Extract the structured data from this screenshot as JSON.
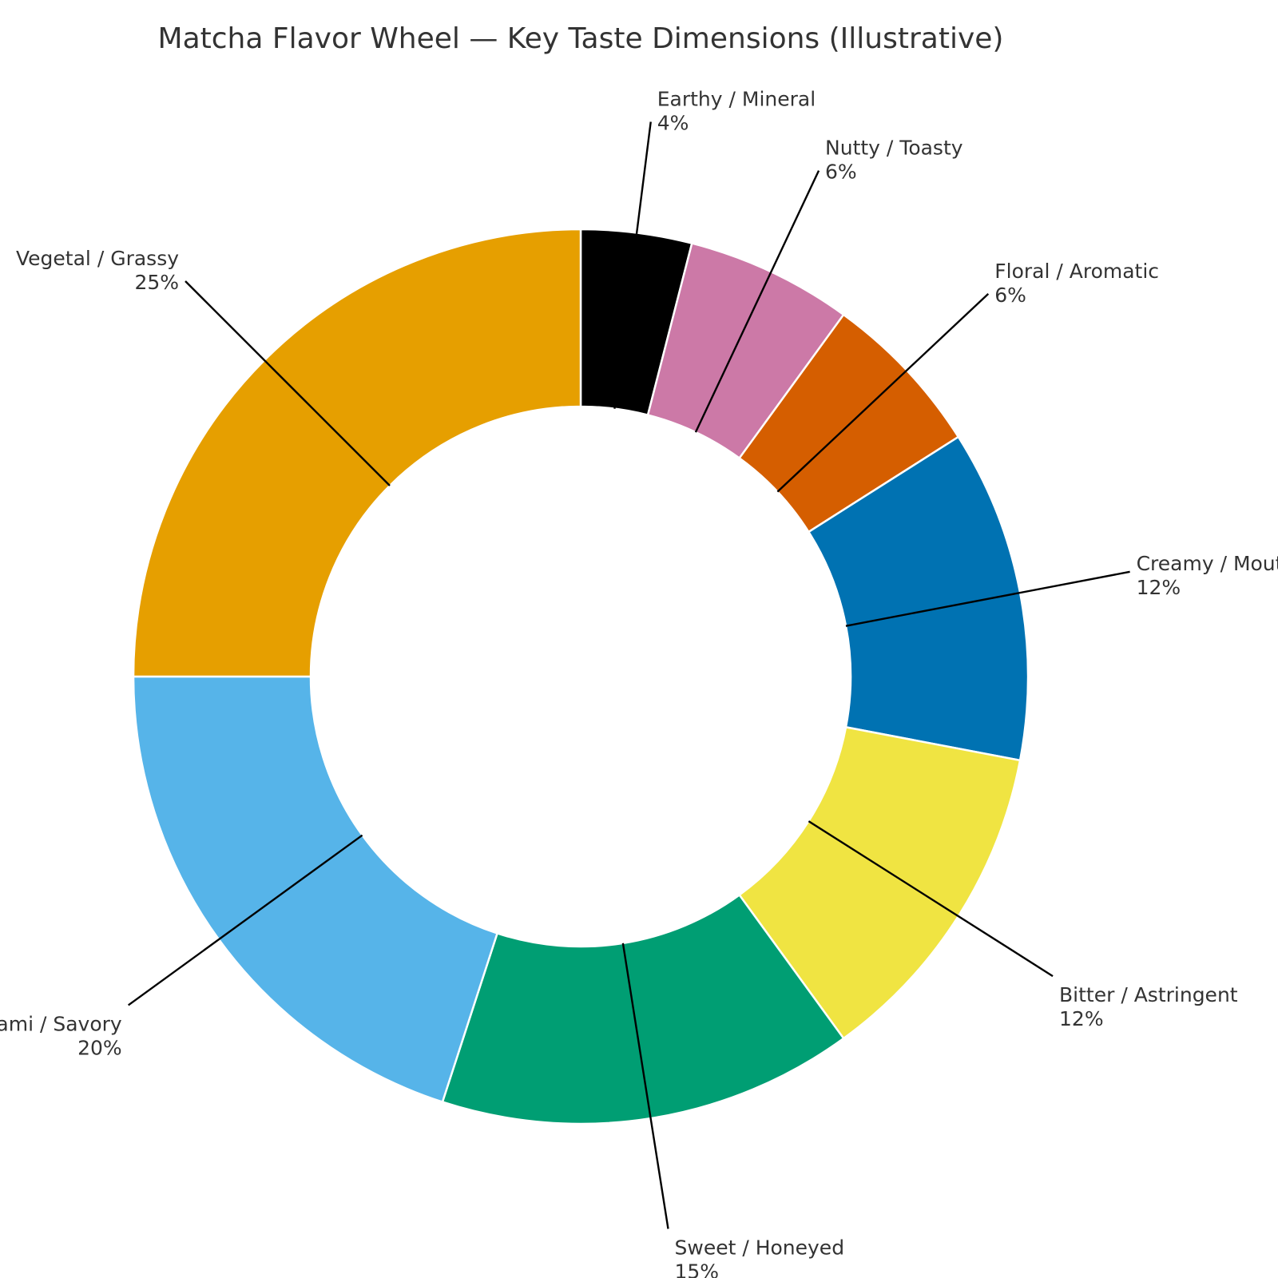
{
  "chart_data": {
    "type": "pie",
    "title": "Matcha Flavor Wheel — Key Taste Dimensions (Illustrative)",
    "style": "donut",
    "start": "top, clockwise",
    "slices": [
      {
        "label": "Earthy / Mineral",
        "value": 4,
        "pct_text": "4%",
        "color": "#000000"
      },
      {
        "label": "Nutty / Toasty",
        "value": 6,
        "pct_text": "6%",
        "color": "#CC79A7"
      },
      {
        "label": "Floral / Aromatic",
        "value": 6,
        "pct_text": "6%",
        "color": "#D55E00"
      },
      {
        "label": "Creamy / Mouthfeel",
        "value": 12,
        "pct_text": "12%",
        "color": "#0072B2"
      },
      {
        "label": "Bitter / Astringent",
        "value": 12,
        "pct_text": "12%",
        "color": "#F0E442"
      },
      {
        "label": "Sweet / Honeyed",
        "value": 15,
        "pct_text": "15%",
        "color": "#009E73"
      },
      {
        "label": "Umami / Savory",
        "value": 20,
        "pct_text": "20%",
        "color": "#56B4E9"
      },
      {
        "label": "Vegetal / Grassy",
        "value": 25,
        "pct_text": "25%",
        "color": "#E69F00"
      }
    ]
  }
}
